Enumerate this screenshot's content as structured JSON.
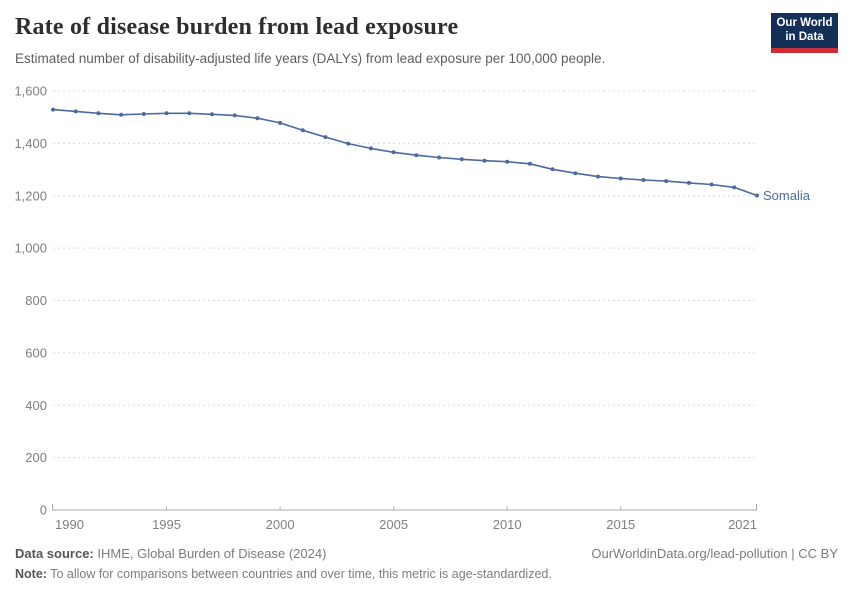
{
  "header": {
    "title": "Rate of disease burden from lead exposure",
    "subtitle": "Estimated number of disability-adjusted life years (DALYs) from lead exposure per 100,000 people.",
    "logo": {
      "line1": "Our World",
      "line2": "in Data",
      "bg_color": "#143059",
      "bar_color": "#d02e35",
      "text_color": "#ffffff"
    }
  },
  "chart_data": {
    "type": "line",
    "title": "Rate of disease burden from lead exposure",
    "xlabel": "",
    "ylabel": "",
    "xlim": [
      1990,
      2021
    ],
    "ylim": [
      0,
      1600
    ],
    "grid": "horizontal-dashed",
    "legend_position": "end-of-line-label",
    "x_ticks": [
      1990,
      1995,
      2000,
      2005,
      2010,
      2015,
      2021
    ],
    "y_ticks": [
      {
        "value": 0,
        "label": "0"
      },
      {
        "value": 200,
        "label": "200"
      },
      {
        "value": 400,
        "label": "400"
      },
      {
        "value": 600,
        "label": "600"
      },
      {
        "value": 800,
        "label": "800"
      },
      {
        "value": 1000,
        "label": "1,000"
      },
      {
        "value": 1200,
        "label": "1,200"
      },
      {
        "value": 1400,
        "label": "1,400"
      },
      {
        "value": 1600,
        "label": "1,600"
      }
    ],
    "series": [
      {
        "name": "Somalia",
        "color": "#4c6a9e",
        "x": [
          1990,
          1991,
          1992,
          1993,
          1994,
          1995,
          1996,
          1997,
          1998,
          1999,
          2000,
          2001,
          2002,
          2003,
          2004,
          2005,
          2006,
          2007,
          2008,
          2009,
          2010,
          2011,
          2012,
          2013,
          2014,
          2015,
          2016,
          2017,
          2018,
          2019,
          2020,
          2021
        ],
        "values": [
          1529,
          1522,
          1515,
          1509,
          1512,
          1515,
          1515,
          1511,
          1507,
          1496,
          1478,
          1450,
          1424,
          1399,
          1381,
          1366,
          1355,
          1346,
          1339,
          1334,
          1330,
          1322,
          1301,
          1286,
          1273,
          1266,
          1260,
          1256,
          1249,
          1243,
          1232,
          1201
        ]
      }
    ]
  },
  "footer": {
    "source_label": "Data source:",
    "source_text": " IHME, Global Burden of Disease (2024)",
    "rights": "OurWorldinData.org/lead-pollution | CC BY",
    "note_label": "Note:",
    "note_text": " To allow for comparisons between countries and over time, this metric is age-standardized."
  }
}
